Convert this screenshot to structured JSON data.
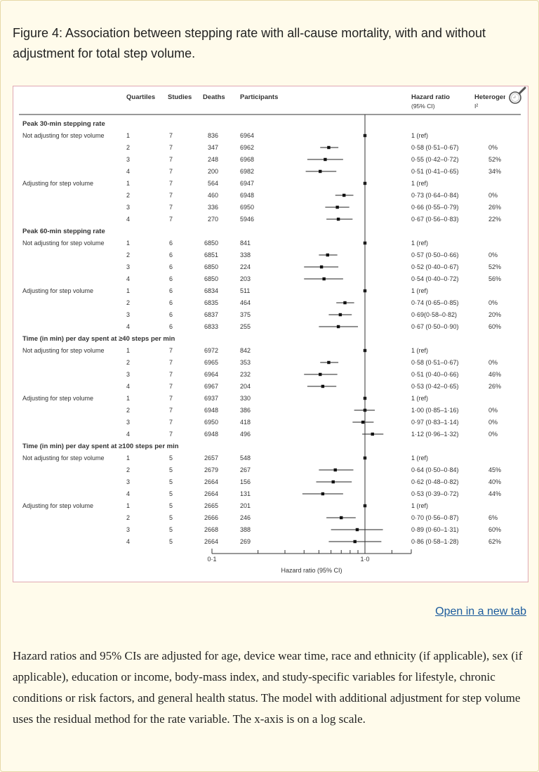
{
  "figure": {
    "caption": "Figure 4: Association between stepping rate with all-cause mortality, with and without adjustment for total step volume.",
    "open_link_label": "Open in a new tab",
    "footnote": "Hazard ratios and 95% CIs are adjusted for age, device wear time, race and ethnicity (if applicable), sex (if applicable), education or income, body-mass index, and study-specific variables for lifestyle, chronic conditions or risk factors, and general health status. The model with additional adjustment for step volume uses the residual method for the rate variable. The x-axis is on a log scale.",
    "zoom_icon": "magnifier-icon"
  },
  "chart_data": {
    "type": "forest",
    "title": "Association between stepping rate with all-cause mortality, with and without adjustment for total step volume",
    "columns": {
      "quartiles": "Quartiles",
      "studies": "Studies",
      "deaths": "Deaths",
      "participants": "Participants",
      "hr_line1": "Hazard ratio",
      "hr_line2": "(95% CI)",
      "het_line1": "Heterogeneity",
      "het_line2": "I²"
    },
    "xlabel": "Hazard ratio (95% CI)",
    "xscale": "log",
    "xlim": [
      0.1,
      1.5
    ],
    "xticks": [
      0.1,
      1.0
    ],
    "xtick_labels": [
      "0·1",
      "1·0"
    ],
    "groups": [
      {
        "title": "Peak 30-min stepping rate",
        "subgroups": [
          {
            "label": "Not adjusting for step volume",
            "rows": [
              {
                "q": "1",
                "studies": "7",
                "deaths": "836",
                "participants": "6964",
                "hr": 1.0,
                "lo": 1.0,
                "hi": 1.0,
                "label": "1 (ref)",
                "het": ""
              },
              {
                "q": "2",
                "studies": "7",
                "deaths": "347",
                "participants": "6962",
                "hr": 0.58,
                "lo": 0.51,
                "hi": 0.67,
                "label": "0·58 (0·51–0·67)",
                "het": "0%"
              },
              {
                "q": "3",
                "studies": "7",
                "deaths": "248",
                "participants": "6968",
                "hr": 0.55,
                "lo": 0.42,
                "hi": 0.72,
                "label": "0·55 (0·42–0·72)",
                "het": "52%"
              },
              {
                "q": "4",
                "studies": "7",
                "deaths": "200",
                "participants": "6982",
                "hr": 0.51,
                "lo": 0.41,
                "hi": 0.65,
                "label": "0·51 (0·41–0·65)",
                "het": "34%"
              }
            ]
          },
          {
            "label": "Adjusting for step volume",
            "rows": [
              {
                "q": "1",
                "studies": "7",
                "deaths": "564",
                "participants": "6947",
                "hr": 1.0,
                "lo": 1.0,
                "hi": 1.0,
                "label": "1 (ref)",
                "het": ""
              },
              {
                "q": "2",
                "studies": "7",
                "deaths": "460",
                "participants": "6948",
                "hr": 0.73,
                "lo": 0.64,
                "hi": 0.84,
                "label": "0·73 (0·64–0·84)",
                "het": "0%"
              },
              {
                "q": "3",
                "studies": "7",
                "deaths": "336",
                "participants": "6950",
                "hr": 0.66,
                "lo": 0.55,
                "hi": 0.79,
                "label": "0·66 (0·55–0·79)",
                "het": "26%"
              },
              {
                "q": "4",
                "studies": "7",
                "deaths": "270",
                "participants": "5946",
                "hr": 0.67,
                "lo": 0.56,
                "hi": 0.83,
                "label": "0·67 (0·56–0·83)",
                "het": "22%"
              }
            ]
          }
        ]
      },
      {
        "title": "Peak 60-min stepping rate",
        "subgroups": [
          {
            "label": "Not adjusting for step volume",
            "rows": [
              {
                "q": "1",
                "studies": "6",
                "deaths": "6850",
                "participants": "841",
                "hr": 1.0,
                "lo": 1.0,
                "hi": 1.0,
                "label": "1 (ref)",
                "het": ""
              },
              {
                "q": "2",
                "studies": "6",
                "deaths": "6851",
                "participants": "338",
                "hr": 0.57,
                "lo": 0.5,
                "hi": 0.66,
                "label": "0·57 (0·50–0·66)",
                "het": "0%"
              },
              {
                "q": "3",
                "studies": "6",
                "deaths": "6850",
                "participants": "224",
                "hr": 0.52,
                "lo": 0.4,
                "hi": 0.67,
                "label": "0·52 (0·40–0·67)",
                "het": "52%"
              },
              {
                "q": "4",
                "studies": "6",
                "deaths": "6850",
                "participants": "203",
                "hr": 0.54,
                "lo": 0.4,
                "hi": 0.72,
                "label": "0·54 (0·40–0·72)",
                "het": "56%"
              }
            ]
          },
          {
            "label": "Adjusting for step volume",
            "rows": [
              {
                "q": "1",
                "studies": "6",
                "deaths": "6834",
                "participants": "511",
                "hr": 1.0,
                "lo": 1.0,
                "hi": 1.0,
                "label": "1 (ref)",
                "het": ""
              },
              {
                "q": "2",
                "studies": "6",
                "deaths": "6835",
                "participants": "464",
                "hr": 0.74,
                "lo": 0.65,
                "hi": 0.85,
                "label": "0·74 (0·65–0·85)",
                "het": "0%"
              },
              {
                "q": "3",
                "studies": "6",
                "deaths": "6837",
                "participants": "375",
                "hr": 0.69,
                "lo": 0.58,
                "hi": 0.82,
                "label": "0·69(0·58–0·82)",
                "het": "20%"
              },
              {
                "q": "4",
                "studies": "6",
                "deaths": "6833",
                "participants": "255",
                "hr": 0.67,
                "lo": 0.5,
                "hi": 0.9,
                "label": "0·67 (0·50–0·90)",
                "het": "60%"
              }
            ]
          }
        ]
      },
      {
        "title": "Time (in min) per day spent at ≥40 steps per min",
        "subgroups": [
          {
            "label": "Not adjusting for step volume",
            "rows": [
              {
                "q": "1",
                "studies": "7",
                "deaths": "6972",
                "participants": "842",
                "hr": 1.0,
                "lo": 1.0,
                "hi": 1.0,
                "label": "1 (ref)",
                "het": ""
              },
              {
                "q": "2",
                "studies": "7",
                "deaths": "6965",
                "participants": "353",
                "hr": 0.58,
                "lo": 0.51,
                "hi": 0.67,
                "label": "0·58 (0·51–0·67)",
                "het": "0%"
              },
              {
                "q": "3",
                "studies": "7",
                "deaths": "6964",
                "participants": "232",
                "hr": 0.51,
                "lo": 0.4,
                "hi": 0.66,
                "label": "0·51 (0·40–0·66)",
                "het": "46%"
              },
              {
                "q": "4",
                "studies": "7",
                "deaths": "6967",
                "participants": "204",
                "hr": 0.53,
                "lo": 0.42,
                "hi": 0.65,
                "label": "0·53 (0·42–0·65)",
                "het": "26%"
              }
            ]
          },
          {
            "label": "Adjusting for step volume",
            "rows": [
              {
                "q": "1",
                "studies": "7",
                "deaths": "6937",
                "participants": "330",
                "hr": 1.0,
                "lo": 1.0,
                "hi": 1.0,
                "label": "1 (ref)",
                "het": ""
              },
              {
                "q": "2",
                "studies": "7",
                "deaths": "6948",
                "participants": "386",
                "hr": 1.0,
                "lo": 0.85,
                "hi": 1.16,
                "label": "1·00 (0·85–1·16)",
                "het": "0%"
              },
              {
                "q": "3",
                "studies": "7",
                "deaths": "6950",
                "participants": "418",
                "hr": 0.97,
                "lo": 0.83,
                "hi": 1.14,
                "label": "0·97 (0·83–1·14)",
                "het": "0%"
              },
              {
                "q": "4",
                "studies": "7",
                "deaths": "6948",
                "participants": "496",
                "hr": 1.12,
                "lo": 0.96,
                "hi": 1.32,
                "label": "1·12 (0·96–1·32)",
                "het": "0%"
              }
            ]
          }
        ]
      },
      {
        "title": "Time (in min) per day spent at ≥100 steps per min",
        "subgroups": [
          {
            "label": "Not adjusting for step volume",
            "rows": [
              {
                "q": "1",
                "studies": "5",
                "deaths": "2657",
                "participants": "548",
                "hr": 1.0,
                "lo": 1.0,
                "hi": 1.0,
                "label": "1 (ref)",
                "het": ""
              },
              {
                "q": "2",
                "studies": "5",
                "deaths": "2679",
                "participants": "267",
                "hr": 0.64,
                "lo": 0.5,
                "hi": 0.84,
                "label": "0·64 (0·50–0·84)",
                "het": "45%"
              },
              {
                "q": "3",
                "studies": "5",
                "deaths": "2664",
                "participants": "156",
                "hr": 0.62,
                "lo": 0.48,
                "hi": 0.82,
                "label": "0·62 (0·48–0·82)",
                "het": "40%"
              },
              {
                "q": "4",
                "studies": "5",
                "deaths": "2664",
                "participants": "131",
                "hr": 0.53,
                "lo": 0.39,
                "hi": 0.72,
                "label": "0·53 (0·39–0·72)",
                "het": "44%"
              }
            ]
          },
          {
            "label": "Adjusting for step volume",
            "rows": [
              {
                "q": "1",
                "studies": "5",
                "deaths": "2665",
                "participants": "201",
                "hr": 1.0,
                "lo": 1.0,
                "hi": 1.0,
                "label": "1 (ref)",
                "het": ""
              },
              {
                "q": "2",
                "studies": "5",
                "deaths": "2666",
                "participants": "246",
                "hr": 0.7,
                "lo": 0.56,
                "hi": 0.87,
                "label": "0·70 (0·56–0·87)",
                "het": "6%"
              },
              {
                "q": "3",
                "studies": "5",
                "deaths": "2668",
                "participants": "388",
                "hr": 0.89,
                "lo": 0.6,
                "hi": 1.31,
                "label": "0·89 (0·60–1·31)",
                "het": "60%"
              },
              {
                "q": "4",
                "studies": "5",
                "deaths": "2664",
                "participants": "269",
                "hr": 0.86,
                "lo": 0.58,
                "hi": 1.28,
                "label": "0·86 (0·58–1·28)",
                "het": "62%"
              }
            ]
          }
        ]
      }
    ]
  }
}
